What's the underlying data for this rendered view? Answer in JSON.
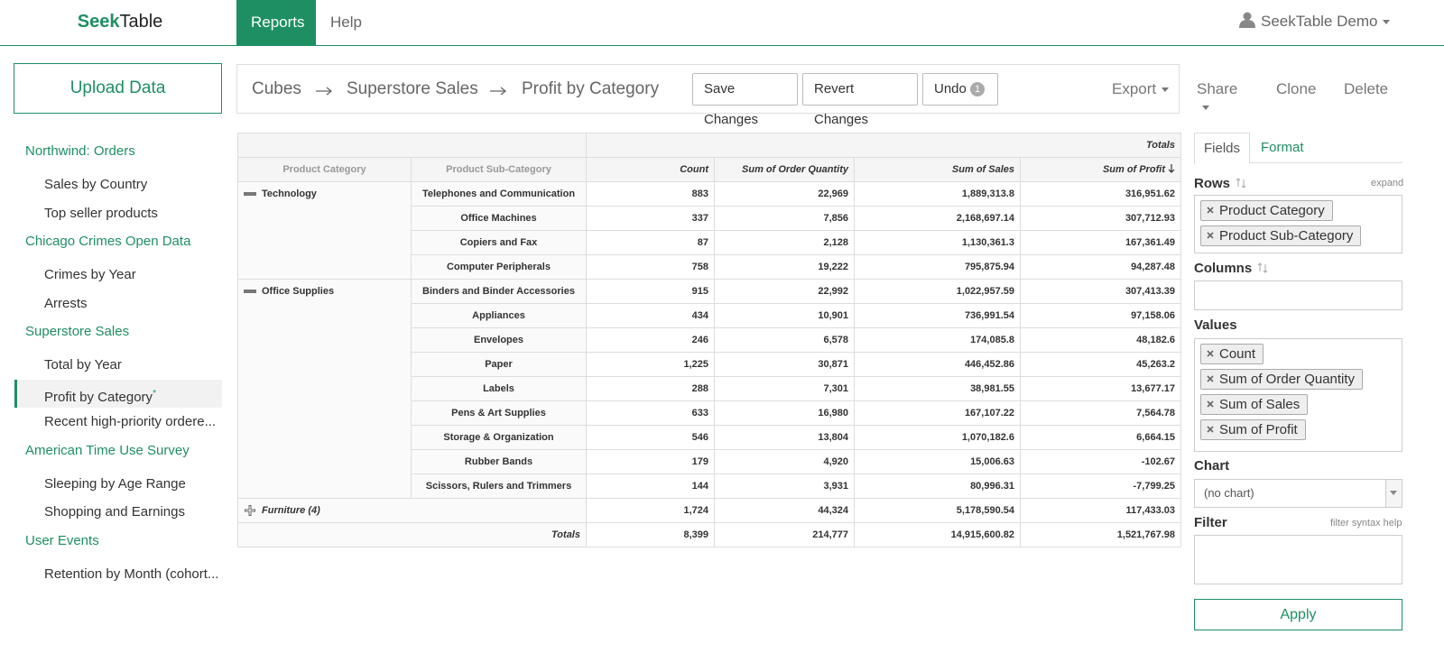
{
  "nav": {
    "brand_a": "Seek",
    "brand_b": "Table",
    "tabs": [
      "Reports",
      "Help"
    ],
    "user": "SeekTable Demo"
  },
  "sidebar": {
    "upload": "Upload Data",
    "groups": [
      {
        "title": "Northwind: Orders",
        "items": [
          {
            "label": "Sales by Country"
          },
          {
            "label": "Top seller products"
          }
        ]
      },
      {
        "title": "Chicago Crimes Open Data",
        "items": [
          {
            "label": "Crimes by Year"
          },
          {
            "label": "Arrests"
          }
        ]
      },
      {
        "title": "Superstore Sales",
        "items": [
          {
            "label": "Total by Year"
          },
          {
            "label": "Profit by Category",
            "mark": "*",
            "active": true
          },
          {
            "label": "Recent high-priority ordere..."
          }
        ]
      },
      {
        "title": "American Time Use Survey",
        "items": [
          {
            "label": "Sleeping by Age Range"
          },
          {
            "label": "Shopping and Earnings"
          }
        ]
      },
      {
        "title": "User Events",
        "items": [
          {
            "label": "Retention by Month (cohort..."
          }
        ]
      }
    ]
  },
  "toolbar": {
    "breadcrumb": [
      "Cubes",
      "Superstore Sales",
      "Profit by Category"
    ],
    "buttons": [
      "Save Changes",
      "Revert Changes",
      "Undo"
    ],
    "undo_count": "1",
    "actions": [
      "Export",
      "Share",
      "Clone",
      "Delete"
    ]
  },
  "table": {
    "totals_header": "Totals",
    "row_headers": [
      "Product Category",
      "Product Sub-Category"
    ],
    "columns": [
      "Count",
      "Sum of Order Quantity",
      "Sum of Sales",
      "Sum of Profit"
    ],
    "groups": [
      {
        "name": "Technology",
        "rows": [
          {
            "label": "Telephones and Communication",
            "cells": [
              "883",
              "22,969",
              "1,889,313.8",
              "316,951.62"
            ]
          },
          {
            "label": "Office Machines",
            "cells": [
              "337",
              "7,856",
              "2,168,697.14",
              "307,712.93"
            ]
          },
          {
            "label": "Copiers and Fax",
            "cells": [
              "87",
              "2,128",
              "1,130,361.3",
              "167,361.49"
            ]
          },
          {
            "label": "Computer Peripherals",
            "cells": [
              "758",
              "19,222",
              "795,875.94",
              "94,287.48"
            ]
          }
        ]
      },
      {
        "name": "Office Supplies",
        "rows": [
          {
            "label": "Binders and Binder Accessories",
            "cells": [
              "915",
              "22,992",
              "1,022,957.59",
              "307,413.39"
            ]
          },
          {
            "label": "Appliances",
            "cells": [
              "434",
              "10,901",
              "736,991.54",
              "97,158.06"
            ]
          },
          {
            "label": "Envelopes",
            "cells": [
              "246",
              "6,578",
              "174,085.8",
              "48,182.6"
            ]
          },
          {
            "label": "Paper",
            "cells": [
              "1,225",
              "30,871",
              "446,452.86",
              "45,263.2"
            ]
          },
          {
            "label": "Labels",
            "cells": [
              "288",
              "7,301",
              "38,981.55",
              "13,677.17"
            ]
          },
          {
            "label": "Pens & Art Supplies",
            "cells": [
              "633",
              "16,980",
              "167,107.22",
              "7,564.78"
            ]
          },
          {
            "label": "Storage & Organization",
            "cells": [
              "546",
              "13,804",
              "1,070,182.6",
              "6,664.15"
            ]
          },
          {
            "label": "Rubber Bands",
            "cells": [
              "179",
              "4,920",
              "15,006.63",
              "-102.67"
            ]
          },
          {
            "label": "Scissors, Rulers and Trimmers",
            "cells": [
              "144",
              "3,931",
              "80,996.31",
              "-7,799.25"
            ]
          }
        ]
      }
    ],
    "collapsed": {
      "label": "Furniture (4)",
      "cells": [
        "1,724",
        "44,324",
        "5,178,590.54",
        "117,433.03"
      ]
    },
    "totals": {
      "label": "Totals",
      "cells": [
        "8,399",
        "214,777",
        "14,915,600.82",
        "1,521,767.98"
      ]
    }
  },
  "panel": {
    "tabs": [
      "Fields",
      "Format"
    ],
    "rows_label": "Rows",
    "expand": "expand",
    "rows": [
      "Product Category",
      "Product Sub-Category"
    ],
    "columns_label": "Columns",
    "values_label": "Values",
    "values": [
      "Count",
      "Sum of Order Quantity",
      "Sum of Sales",
      "Sum of Profit"
    ],
    "chart_label": "Chart",
    "chart_value": "(no chart)",
    "filter_label": "Filter",
    "filter_help": "filter syntax help",
    "apply": "Apply"
  }
}
